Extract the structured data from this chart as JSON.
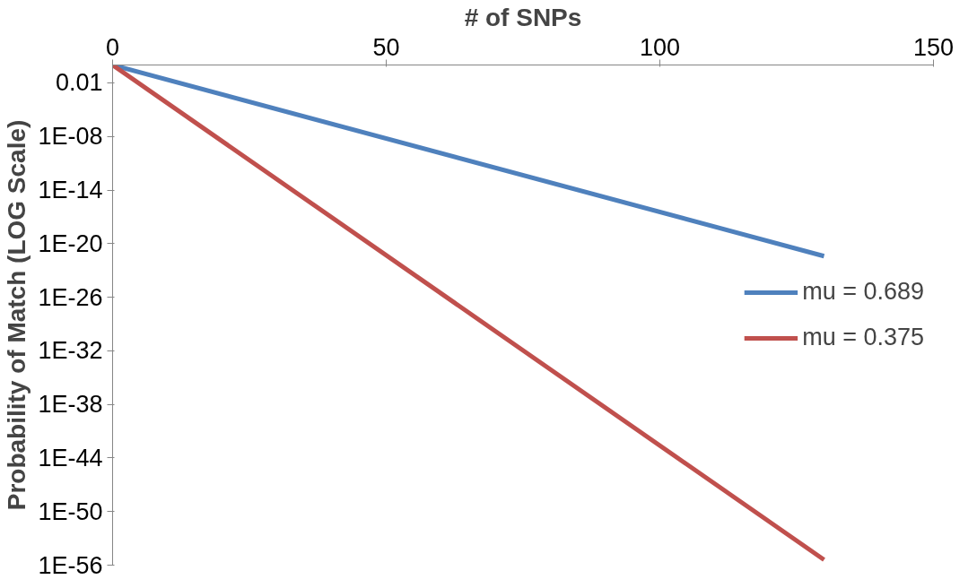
{
  "chart_data": {
    "type": "line",
    "xlabel": "# of SNPs",
    "ylabel": "Probability of Match (LOG Scale)",
    "log": "y",
    "x": [
      0,
      130
    ],
    "series": [
      {
        "name": "mu = 0.689",
        "color": "#4f81bd",
        "values": [
          1,
          4e-22
        ]
      },
      {
        "name": "mu = 0.375",
        "color": "#c0504d",
        "values": [
          1,
          4e-56
        ]
      }
    ],
    "xlim": [
      0,
      150
    ],
    "xticks": [
      0,
      50,
      100,
      150
    ],
    "ylim": [
      1e-56,
      1
    ],
    "yticks": [
      0.01,
      {
        "value": 1e-08,
        "label": "1E-08"
      },
      {
        "value": 1e-14,
        "label": "1E-14"
      },
      {
        "value": 1e-20,
        "label": "1E-20"
      },
      {
        "value": 1e-26,
        "label": "1E-26"
      },
      {
        "value": 1e-32,
        "label": "1E-32"
      },
      {
        "value": 1e-38,
        "label": "1E-38"
      },
      {
        "value": 1e-44,
        "label": "1E-44"
      },
      {
        "value": 1e-50,
        "label": "1E-50"
      },
      {
        "value": 1e-56,
        "label": "1E-56"
      }
    ],
    "grid": false,
    "legend": "right",
    "marker": "none",
    "line_style": "solid"
  }
}
